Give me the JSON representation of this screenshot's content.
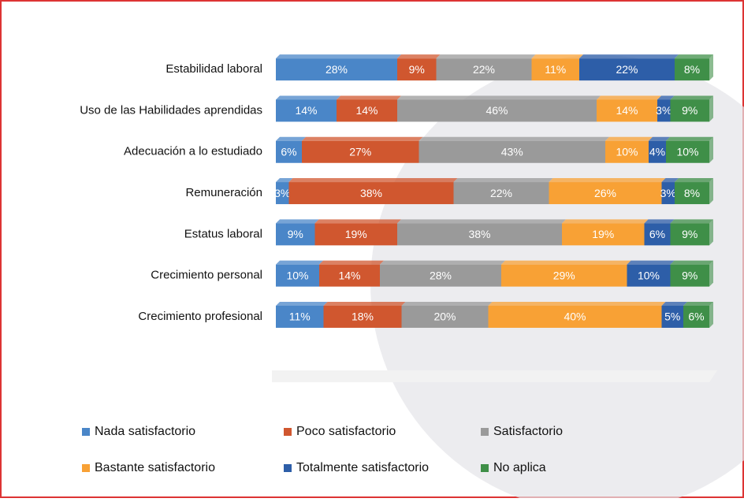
{
  "chart_data": {
    "type": "stacked-bar-horizontal",
    "categories": [
      "Estabilidad laboral",
      "Uso de las Habilidades aprendidas",
      "Adecuación a lo estudiado",
      "Remuneración",
      "Estatus laboral",
      "Crecimiento personal",
      "Crecimiento profesional"
    ],
    "series": [
      {
        "name": "Nada satisfactorio",
        "color": "#4a86c8",
        "values": [
          28,
          14,
          6,
          3,
          9,
          10,
          11
        ],
        "value_labels": [
          "28%",
          "14%",
          "6%",
          "3%",
          "9%",
          "10%",
          "11%"
        ]
      },
      {
        "name": "Poco satisfactorio",
        "color": "#d0572f",
        "values": [
          9,
          14,
          27,
          38,
          19,
          14,
          18
        ],
        "value_labels": [
          "9%",
          "14%",
          "27%",
          "38%",
          "19%",
          "14%",
          "18%"
        ]
      },
      {
        "name": "Satisfactorio",
        "color": "#9a9a9a",
        "values": [
          22,
          46,
          43,
          22,
          38,
          28,
          20
        ],
        "value_labels": [
          "22%",
          "46%",
          "43%",
          "22%",
          "38%",
          "28%",
          "20%"
        ]
      },
      {
        "name": "Bastante satisfactorio",
        "color": "#f8a135",
        "values": [
          11,
          14,
          10,
          26,
          19,
          29,
          40
        ],
        "value_labels": [
          "11%",
          "14%",
          "10%",
          "26%",
          "19%",
          "29%",
          "40%"
        ]
      },
      {
        "name": "Totalmente satisfactorio",
        "color": "#2d5ea8",
        "values": [
          22,
          3,
          4,
          3,
          6,
          10,
          5
        ],
        "value_labels": [
          "22%",
          "3%",
          "4%",
          "3%",
          "6%",
          "10%",
          "5%"
        ]
      },
      {
        "name": "No aplica",
        "color": "#3f8f48",
        "values": [
          8,
          9,
          10,
          8,
          9,
          9,
          6
        ],
        "value_labels": [
          "8%",
          "9%",
          "10%",
          "8%",
          "9%",
          "9%",
          "6%"
        ]
      }
    ]
  }
}
